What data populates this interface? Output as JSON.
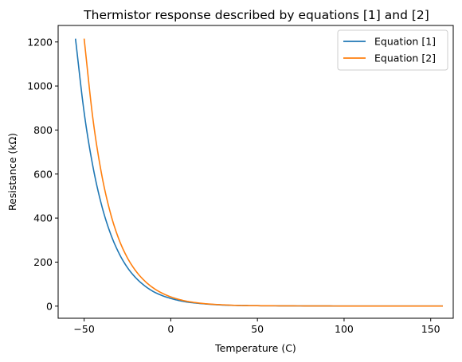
{
  "chart_data": {
    "type": "line",
    "title": "Thermistor response described by equations [1] and [2]",
    "xlabel": "Temperature (C)",
    "ylabel": "Resistance (kΩ)",
    "xlim": [
      -65,
      163
    ],
    "ylim": [
      -55,
      1275
    ],
    "x_ticks": [
      -50,
      0,
      50,
      100,
      150
    ],
    "x_tick_labels": [
      "−50",
      "0",
      "50",
      "100",
      "150"
    ],
    "y_ticks": [
      0,
      200,
      400,
      600,
      800,
      1000,
      1200
    ],
    "y_tick_labels": [
      "0",
      "200",
      "400",
      "600",
      "800",
      "1000",
      "1200"
    ],
    "grid": false,
    "legend_position": "top-right",
    "series": [
      {
        "name": "Equation [1]",
        "color": "#1f77b4",
        "x": [
          -55,
          -50,
          -45,
          -40,
          -35,
          -30,
          -25,
          -20,
          -15,
          -10,
          -5,
          0,
          5,
          10,
          20,
          30,
          40,
          50,
          75,
          100,
          125,
          157
        ],
        "y": [
          1215,
          880,
          637,
          461,
          334,
          242,
          175,
          127,
          92,
          66,
          48,
          35,
          25,
          18,
          10,
          5,
          3,
          2,
          1,
          0.5,
          0.3,
          0.2
        ]
      },
      {
        "name": "Equation [2]",
        "color": "#ff7f0e",
        "x": [
          -50,
          -45,
          -40,
          -35,
          -30,
          -25,
          -20,
          -15,
          -10,
          -5,
          0,
          5,
          10,
          20,
          30,
          40,
          50,
          75,
          100,
          125,
          157
        ],
        "y": [
          1215,
          855,
          603,
          428,
          305,
          219,
          158,
          114,
          82,
          59,
          42,
          30,
          21,
          11,
          6,
          3,
          2,
          1,
          0.5,
          0.3,
          0.2
        ]
      }
    ]
  }
}
